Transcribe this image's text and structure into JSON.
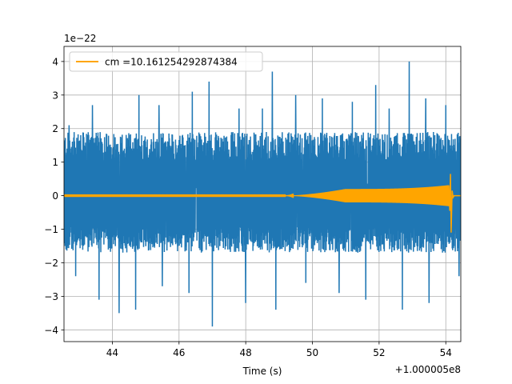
{
  "chart_data": {
    "type": "line",
    "title": "",
    "xlabel": "Time (s)",
    "ylabel": "",
    "x_offset_label": "+1.000005e8",
    "y_scale_label": "1e−22",
    "xlim": [
      42.55,
      54.45
    ],
    "ylim": [
      -4.35,
      4.45
    ],
    "grid": true,
    "legend_position": "top-left",
    "x_ticks": [
      44,
      46,
      48,
      50,
      52,
      54
    ],
    "x_tick_labels": [
      "44",
      "46",
      "48",
      "50",
      "52",
      "54"
    ],
    "y_ticks": [
      -4,
      -3,
      -2,
      -1,
      0,
      1,
      2,
      3,
      4
    ],
    "y_tick_labels": [
      "−4",
      "−3",
      "−2",
      "−1",
      "0",
      "1",
      "2",
      "3",
      "4"
    ],
    "series": [
      {
        "name": "",
        "color": "#1f77b4",
        "kind": "noise",
        "x_range": [
          42.55,
          54.45
        ],
        "typical_band": [
          -1.7,
          1.9
        ],
        "peaks": [
          {
            "x": 42.7,
            "y": 2.1
          },
          {
            "x": 43.4,
            "y": 2.7
          },
          {
            "x": 44.2,
            "y": 2.8
          },
          {
            "x": 44.8,
            "y": 3.0
          },
          {
            "x": 45.4,
            "y": 2.7
          },
          {
            "x": 46.4,
            "y": 3.1
          },
          {
            "x": 46.9,
            "y": 3.4
          },
          {
            "x": 47.8,
            "y": 2.6
          },
          {
            "x": 48.5,
            "y": 2.6
          },
          {
            "x": 48.8,
            "y": 3.7
          },
          {
            "x": 49.5,
            "y": 3.0
          },
          {
            "x": 49.8,
            "y": 2.7
          },
          {
            "x": 50.3,
            "y": 2.9
          },
          {
            "x": 51.2,
            "y": 2.8
          },
          {
            "x": 51.9,
            "y": 3.3
          },
          {
            "x": 52.3,
            "y": 2.6
          },
          {
            "x": 52.9,
            "y": 4.0
          },
          {
            "x": 53.4,
            "y": 2.9
          },
          {
            "x": 54.0,
            "y": 2.7
          },
          {
            "x": 42.9,
            "y": -2.4
          },
          {
            "x": 43.6,
            "y": -3.1
          },
          {
            "x": 44.2,
            "y": -3.5
          },
          {
            "x": 44.7,
            "y": -3.4
          },
          {
            "x": 45.5,
            "y": -2.7
          },
          {
            "x": 46.3,
            "y": -2.9
          },
          {
            "x": 47.0,
            "y": -3.9
          },
          {
            "x": 48.0,
            "y": -3.2
          },
          {
            "x": 48.9,
            "y": -3.4
          },
          {
            "x": 49.8,
            "y": -2.6
          },
          {
            "x": 50.8,
            "y": -2.9
          },
          {
            "x": 51.6,
            "y": -3.1
          },
          {
            "x": 52.7,
            "y": -3.4
          },
          {
            "x": 53.5,
            "y": -3.2
          },
          {
            "x": 54.4,
            "y": -2.4
          }
        ]
      },
      {
        "name": "cm =10.161254292874384",
        "color": "#ffa500",
        "kind": "chirp",
        "x_range": [
          42.55,
          54.45
        ],
        "onset_x": 49.2,
        "plateau_x": 51.0,
        "plateau_amplitude": 0.2,
        "peak_x": 54.15,
        "peak_max": 0.65,
        "peak_min": -1.1
      }
    ]
  }
}
